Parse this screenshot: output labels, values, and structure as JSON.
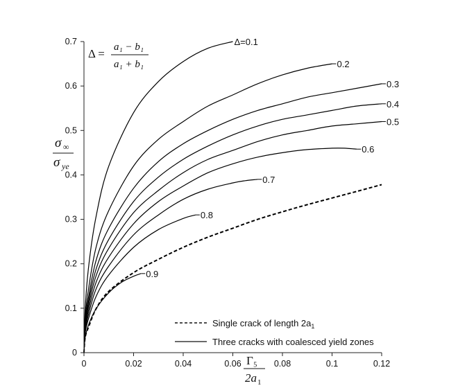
{
  "chart_data": {
    "type": "line",
    "x_ticks": [
      "0",
      "0.02",
      "0.04",
      "0.06",
      "0.08",
      "0.1",
      "0.12"
    ],
    "y_ticks": [
      "0",
      "0.1",
      "0.2",
      "0.3",
      "0.4",
      "0.5",
      "0.6",
      "0.7"
    ],
    "xlim": [
      0,
      0.12
    ],
    "ylim": [
      0,
      0.7
    ],
    "grid": false,
    "xlabel": {
      "numerator": "Γ₅",
      "denominator_base": "2a",
      "denominator_sub": "1"
    },
    "ylabel": {
      "numerator_base": "σ",
      "numerator_sub": "∞",
      "denominator_base": "σ",
      "denominator_sub": "ye"
    },
    "formula": {
      "lhs": "Δ =",
      "numerator": "a₁ − b₁",
      "denominator": "a₁ + b₁"
    },
    "series": [
      {
        "name": "Δ=0.1",
        "style": "solid",
        "label_style": "leader",
        "x": [
          0.0,
          0.0005,
          0.002,
          0.005,
          0.01,
          0.02,
          0.03,
          0.04,
          0.05,
          0.06
        ],
        "y": [
          0.0,
          0.1,
          0.2,
          0.31,
          0.42,
          0.54,
          0.61,
          0.655,
          0.685,
          0.7
        ]
      },
      {
        "name": "0.2",
        "style": "solid",
        "label_style": "dash",
        "x": [
          0.0,
          0.0005,
          0.002,
          0.005,
          0.01,
          0.02,
          0.03,
          0.04,
          0.05,
          0.06,
          0.07,
          0.08,
          0.09,
          0.1
        ],
        "y": [
          0.0,
          0.08,
          0.15,
          0.24,
          0.32,
          0.42,
          0.48,
          0.52,
          0.555,
          0.58,
          0.605,
          0.625,
          0.64,
          0.65
        ]
      },
      {
        "name": "0.3",
        "style": "solid",
        "label_style": "dash",
        "x": [
          0.0,
          0.0005,
          0.002,
          0.005,
          0.01,
          0.02,
          0.03,
          0.04,
          0.05,
          0.06,
          0.07,
          0.08,
          0.09,
          0.1,
          0.11,
          0.12
        ],
        "y": [
          0.0,
          0.07,
          0.13,
          0.21,
          0.28,
          0.37,
          0.43,
          0.47,
          0.5,
          0.525,
          0.545,
          0.56,
          0.575,
          0.585,
          0.595,
          0.605
        ]
      },
      {
        "name": "0.4",
        "style": "solid",
        "label_style": "dash",
        "x": [
          0.0,
          0.0005,
          0.002,
          0.005,
          0.01,
          0.02,
          0.03,
          0.04,
          0.05,
          0.06,
          0.07,
          0.08,
          0.09,
          0.1,
          0.11,
          0.12
        ],
        "y": [
          0.0,
          0.065,
          0.12,
          0.19,
          0.255,
          0.34,
          0.395,
          0.435,
          0.465,
          0.49,
          0.51,
          0.525,
          0.535,
          0.545,
          0.555,
          0.56
        ]
      },
      {
        "name": "0.5",
        "style": "solid",
        "label_style": "dash",
        "x": [
          0.0,
          0.0005,
          0.002,
          0.005,
          0.01,
          0.02,
          0.03,
          0.04,
          0.05,
          0.06,
          0.07,
          0.08,
          0.09,
          0.1,
          0.11,
          0.12
        ],
        "y": [
          0.0,
          0.06,
          0.11,
          0.175,
          0.235,
          0.315,
          0.365,
          0.405,
          0.435,
          0.455,
          0.475,
          0.49,
          0.5,
          0.51,
          0.515,
          0.52
        ]
      },
      {
        "name": "0.6",
        "style": "solid",
        "label_style": "dash",
        "x": [
          0.0,
          0.0005,
          0.002,
          0.005,
          0.01,
          0.02,
          0.03,
          0.04,
          0.05,
          0.06,
          0.07,
          0.08,
          0.09,
          0.1,
          0.105,
          0.11
        ],
        "y": [
          0.0,
          0.055,
          0.1,
          0.16,
          0.215,
          0.29,
          0.34,
          0.375,
          0.405,
          0.425,
          0.44,
          0.45,
          0.457,
          0.46,
          0.46,
          0.458
        ]
      },
      {
        "name": "0.7",
        "style": "solid",
        "label_style": "dash",
        "x": [
          0.0,
          0.0005,
          0.002,
          0.005,
          0.01,
          0.02,
          0.03,
          0.04,
          0.05,
          0.06,
          0.065,
          0.07
        ],
        "y": [
          0.0,
          0.05,
          0.09,
          0.145,
          0.195,
          0.265,
          0.31,
          0.345,
          0.368,
          0.382,
          0.387,
          0.39
        ]
      },
      {
        "name": "0.8",
        "style": "solid",
        "label_style": "dash",
        "x": [
          0.0,
          0.0005,
          0.002,
          0.005,
          0.01,
          0.02,
          0.03,
          0.04,
          0.045
        ],
        "y": [
          0.0,
          0.045,
          0.08,
          0.128,
          0.175,
          0.237,
          0.277,
          0.302,
          0.31
        ]
      },
      {
        "name": "0.9",
        "style": "solid",
        "label_style": "dash",
        "x": [
          0.0,
          0.0005,
          0.002,
          0.005,
          0.01,
          0.015,
          0.02,
          0.023
        ],
        "y": [
          0.0,
          0.035,
          0.065,
          0.1,
          0.135,
          0.158,
          0.172,
          0.178
        ]
      },
      {
        "name": "Single crack of length 2a₁",
        "style": "dashed",
        "label_style": "none",
        "x": [
          0.0,
          0.0005,
          0.002,
          0.005,
          0.01,
          0.02,
          0.03,
          0.04,
          0.05,
          0.06,
          0.07,
          0.08,
          0.09,
          0.1,
          0.11,
          0.12
        ],
        "y": [
          0.0,
          0.035,
          0.06,
          0.1,
          0.138,
          0.18,
          0.21,
          0.237,
          0.26,
          0.28,
          0.3,
          0.317,
          0.333,
          0.348,
          0.363,
          0.378
        ]
      }
    ],
    "legend": [
      {
        "label": "Single crack of length 2a",
        "subscript": "1",
        "style": "dashed"
      },
      {
        "label": "Three cracks with coalesced yield zones",
        "subscript": "",
        "style": "solid"
      }
    ],
    "legend_position": "bottom-right"
  }
}
